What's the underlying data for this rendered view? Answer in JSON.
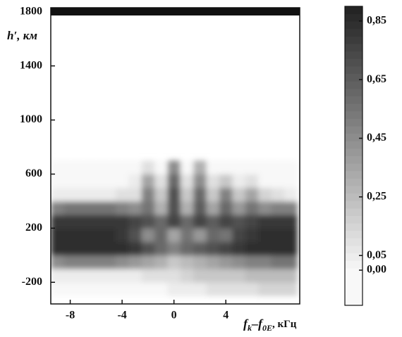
{
  "chart_data": {
    "type": "heatmap",
    "y_label": "h′, км",
    "x_label": [
      "f",
      "k",
      "–f",
      "0E",
      ", кГц"
    ],
    "x": [
      -9,
      -8,
      -7,
      -6,
      -5,
      -4,
      -3,
      -2,
      -1,
      0,
      1,
      2,
      3,
      4,
      5,
      6,
      7,
      8,
      9
    ],
    "y": [
      -250,
      -150,
      -50,
      50,
      150,
      250,
      350,
      450,
      550,
      650
    ],
    "z": [
      [
        0,
        0,
        0,
        0,
        0,
        0,
        0,
        0,
        0,
        0.05,
        0.05,
        0.05,
        0.1,
        0.1,
        0.1,
        0.1,
        0.15,
        0.15,
        0.15
      ],
      [
        0.05,
        0.05,
        0.05,
        0.05,
        0.05,
        0.05,
        0.05,
        0.1,
        0.1,
        0.1,
        0.15,
        0.2,
        0.2,
        0.2,
        0.2,
        0.25,
        0.25,
        0.25,
        0.25
      ],
      [
        0.45,
        0.5,
        0.5,
        0.5,
        0.5,
        0.45,
        0.4,
        0.35,
        0.3,
        0.2,
        0.25,
        0.3,
        0.35,
        0.4,
        0.45,
        0.5,
        0.5,
        0.55,
        0.55
      ],
      [
        0.85,
        0.85,
        0.85,
        0.85,
        0.85,
        0.85,
        0.8,
        0.7,
        0.6,
        0.5,
        0.6,
        0.65,
        0.7,
        0.75,
        0.8,
        0.85,
        0.85,
        0.85,
        0.85
      ],
      [
        0.85,
        0.85,
        0.85,
        0.85,
        0.85,
        0.8,
        0.7,
        0.45,
        0.6,
        0.35,
        0.55,
        0.4,
        0.6,
        0.55,
        0.75,
        0.8,
        0.85,
        0.85,
        0.85
      ],
      [
        0.8,
        0.8,
        0.8,
        0.8,
        0.8,
        0.8,
        0.75,
        0.7,
        0.6,
        0.75,
        0.6,
        0.75,
        0.65,
        0.75,
        0.7,
        0.75,
        0.8,
        0.8,
        0.8
      ],
      [
        0.5,
        0.55,
        0.55,
        0.55,
        0.55,
        0.5,
        0.45,
        0.55,
        0.3,
        0.7,
        0.3,
        0.65,
        0.35,
        0.6,
        0.4,
        0.55,
        0.45,
        0.5,
        0.5
      ],
      [
        0.05,
        0.05,
        0.05,
        0.05,
        0.05,
        0.1,
        0.1,
        0.5,
        0.2,
        0.7,
        0.2,
        0.6,
        0.2,
        0.5,
        0.2,
        0.35,
        0.15,
        0.1,
        0.05
      ],
      [
        0,
        0,
        0,
        0,
        0,
        0,
        0.05,
        0.35,
        0.1,
        0.6,
        0.1,
        0.45,
        0.1,
        0.2,
        0.05,
        0.1,
        0,
        0,
        0
      ],
      [
        0,
        0,
        0,
        0,
        0,
        0,
        0,
        0.1,
        0,
        0.45,
        0,
        0.3,
        0,
        0,
        0,
        0,
        0,
        0,
        0
      ]
    ],
    "xlim": [
      -9.5,
      9.7
    ],
    "ylim": [
      -360,
      1830
    ],
    "xticks": [
      -8,
      -4,
      0,
      4
    ],
    "yticks": [
      -200,
      200,
      600,
      1000,
      1400,
      1800
    ],
    "colorbar": {
      "lim": [
        -0.12,
        0.9
      ],
      "ticks": [
        {
          "value": 0.85,
          "label": "0,85"
        },
        {
          "value": 0.65,
          "label": "0,65"
        },
        {
          "value": 0.45,
          "label": "0,45"
        },
        {
          "value": 0.25,
          "label": "0,25"
        },
        {
          "value": 0.05,
          "label": "0,05"
        },
        {
          "value": 0,
          "label": "0,00"
        }
      ]
    }
  }
}
